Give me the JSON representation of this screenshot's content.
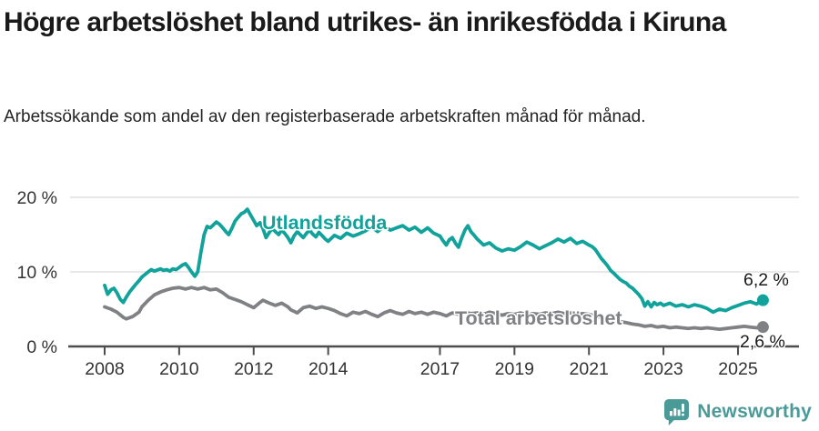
{
  "header": {
    "title": "Högre arbetslöshet bland utrikes- än inrikesfödda i Kiruna",
    "subtitle": "Arbetssökande som andel av den registerbaserade arbetskraften månad för månad."
  },
  "footer": {
    "brand": "Newsworthy",
    "logo_icon": "speech-bubble-bar-chart-icon"
  },
  "colors": {
    "foreign_born": "#11a39b",
    "total": "#808184",
    "grid": "#e1e1e1",
    "axis": "#4d4d4d",
    "tick_text": "#333333",
    "value_text": "#1a1a1a",
    "brand": "#4a9b98"
  },
  "chart_data": {
    "type": "line",
    "ylabel": "",
    "xlabel": "",
    "ylim": [
      0,
      21.5
    ],
    "grid": "horizontal",
    "legend_position": "inline-labels",
    "yticks": [
      {
        "label": "0 %",
        "value": 0
      },
      {
        "label": "10 %",
        "value": 10
      },
      {
        "label": "20 %",
        "value": 20
      }
    ],
    "xticks": [
      {
        "label": "2008",
        "value": 2008
      },
      {
        "label": "2010",
        "value": 2010
      },
      {
        "label": "2012",
        "value": 2012
      },
      {
        "label": "2014",
        "value": 2014
      },
      {
        "label": "2017",
        "value": 2017
      },
      {
        "label": "2019",
        "value": 2019
      },
      {
        "label": "2021",
        "value": 2021
      },
      {
        "label": "2023",
        "value": 2023
      },
      {
        "label": "2025",
        "value": 2025
      }
    ],
    "series": [
      {
        "name": "Utlandsfödda",
        "color_key": "foreign_born",
        "end_label": "6,2 %",
        "end_value": 6.2,
        "points": [
          [
            2008.0,
            8.2
          ],
          [
            2008.08,
            7.0
          ],
          [
            2008.17,
            7.6
          ],
          [
            2008.25,
            7.8
          ],
          [
            2008.33,
            7.2
          ],
          [
            2008.42,
            6.3
          ],
          [
            2008.5,
            5.9
          ],
          [
            2008.58,
            6.6
          ],
          [
            2008.67,
            7.3
          ],
          [
            2008.75,
            7.8
          ],
          [
            2008.83,
            8.3
          ],
          [
            2008.92,
            8.8
          ],
          [
            2009.0,
            9.3
          ],
          [
            2009.17,
            10.0
          ],
          [
            2009.25,
            10.3
          ],
          [
            2009.33,
            10.1
          ],
          [
            2009.5,
            10.4
          ],
          [
            2009.58,
            10.2
          ],
          [
            2009.67,
            10.3
          ],
          [
            2009.75,
            10.1
          ],
          [
            2009.83,
            10.4
          ],
          [
            2009.92,
            10.3
          ],
          [
            2010.0,
            10.6
          ],
          [
            2010.08,
            10.9
          ],
          [
            2010.17,
            11.1
          ],
          [
            2010.25,
            10.6
          ],
          [
            2010.33,
            10.0
          ],
          [
            2010.42,
            9.4
          ],
          [
            2010.5,
            10.0
          ],
          [
            2010.58,
            12.5
          ],
          [
            2010.67,
            15.0
          ],
          [
            2010.75,
            16.1
          ],
          [
            2010.83,
            15.9
          ],
          [
            2010.92,
            16.3
          ],
          [
            2011.0,
            16.7
          ],
          [
            2011.08,
            16.4
          ],
          [
            2011.17,
            15.9
          ],
          [
            2011.25,
            15.4
          ],
          [
            2011.33,
            15.0
          ],
          [
            2011.42,
            15.9
          ],
          [
            2011.5,
            16.8
          ],
          [
            2011.58,
            17.3
          ],
          [
            2011.67,
            17.8
          ],
          [
            2011.75,
            18.0
          ],
          [
            2011.83,
            18.4
          ],
          [
            2011.92,
            17.6
          ],
          [
            2012.0,
            16.9
          ],
          [
            2012.08,
            16.2
          ],
          [
            2012.17,
            16.6
          ],
          [
            2012.25,
            15.8
          ],
          [
            2012.33,
            14.6
          ],
          [
            2012.42,
            15.3
          ],
          [
            2012.5,
            15.8
          ],
          [
            2012.58,
            15.4
          ],
          [
            2012.67,
            15.0
          ],
          [
            2012.75,
            15.6
          ],
          [
            2012.83,
            15.2
          ],
          [
            2012.92,
            14.6
          ],
          [
            2013.0,
            13.9
          ],
          [
            2013.08,
            14.8
          ],
          [
            2013.17,
            15.4
          ],
          [
            2013.25,
            15.0
          ],
          [
            2013.33,
            14.6
          ],
          [
            2013.42,
            15.2
          ],
          [
            2013.5,
            15.6
          ],
          [
            2013.58,
            15.1
          ],
          [
            2013.67,
            14.7
          ],
          [
            2013.75,
            15.3
          ],
          [
            2013.83,
            14.9
          ],
          [
            2013.92,
            14.4
          ],
          [
            2014.0,
            14.1
          ],
          [
            2014.17,
            14.9
          ],
          [
            2014.33,
            14.5
          ],
          [
            2014.5,
            15.2
          ],
          [
            2014.67,
            14.8
          ],
          [
            2014.83,
            15.1
          ],
          [
            2015.0,
            15.5
          ],
          [
            2015.17,
            16.0
          ],
          [
            2015.33,
            15.4
          ],
          [
            2015.5,
            16.1
          ],
          [
            2015.67,
            15.6
          ],
          [
            2015.83,
            15.9
          ],
          [
            2016.0,
            16.2
          ],
          [
            2016.17,
            15.6
          ],
          [
            2016.33,
            16.0
          ],
          [
            2016.5,
            15.3
          ],
          [
            2016.67,
            15.9
          ],
          [
            2016.83,
            15.2
          ],
          [
            2017.0,
            14.8
          ],
          [
            2017.08,
            14.2
          ],
          [
            2017.17,
            13.6
          ],
          [
            2017.25,
            14.3
          ],
          [
            2017.33,
            14.6
          ],
          [
            2017.42,
            13.8
          ],
          [
            2017.5,
            13.3
          ],
          [
            2017.58,
            14.5
          ],
          [
            2017.67,
            15.6
          ],
          [
            2017.75,
            16.2
          ],
          [
            2017.83,
            15.4
          ],
          [
            2017.92,
            14.9
          ],
          [
            2018.0,
            14.4
          ],
          [
            2018.17,
            13.6
          ],
          [
            2018.33,
            13.9
          ],
          [
            2018.5,
            13.2
          ],
          [
            2018.67,
            12.8
          ],
          [
            2018.83,
            13.1
          ],
          [
            2019.0,
            12.9
          ],
          [
            2019.17,
            13.4
          ],
          [
            2019.33,
            14.0
          ],
          [
            2019.5,
            13.6
          ],
          [
            2019.67,
            13.1
          ],
          [
            2019.83,
            13.5
          ],
          [
            2020.0,
            13.9
          ],
          [
            2020.17,
            14.4
          ],
          [
            2020.33,
            14.0
          ],
          [
            2020.5,
            14.5
          ],
          [
            2020.67,
            13.8
          ],
          [
            2020.83,
            14.1
          ],
          [
            2021.0,
            13.6
          ],
          [
            2021.08,
            13.4
          ],
          [
            2021.17,
            13.0
          ],
          [
            2021.25,
            12.4
          ],
          [
            2021.33,
            11.8
          ],
          [
            2021.42,
            11.3
          ],
          [
            2021.5,
            10.8
          ],
          [
            2021.58,
            10.2
          ],
          [
            2021.67,
            9.8
          ],
          [
            2021.75,
            9.4
          ],
          [
            2021.83,
            9.0
          ],
          [
            2021.92,
            8.7
          ],
          [
            2022.0,
            8.5
          ],
          [
            2022.08,
            8.1
          ],
          [
            2022.17,
            7.8
          ],
          [
            2022.25,
            7.4
          ],
          [
            2022.33,
            7.0
          ],
          [
            2022.42,
            6.4
          ],
          [
            2022.5,
            5.4
          ],
          [
            2022.58,
            6.0
          ],
          [
            2022.67,
            5.3
          ],
          [
            2022.75,
            5.9
          ],
          [
            2022.83,
            5.6
          ],
          [
            2022.92,
            5.8
          ],
          [
            2023.0,
            5.5
          ],
          [
            2023.17,
            5.8
          ],
          [
            2023.33,
            5.4
          ],
          [
            2023.5,
            5.6
          ],
          [
            2023.67,
            5.3
          ],
          [
            2023.83,
            5.6
          ],
          [
            2024.0,
            5.4
          ],
          [
            2024.17,
            5.1
          ],
          [
            2024.33,
            4.6
          ],
          [
            2024.5,
            5.0
          ],
          [
            2024.67,
            4.8
          ],
          [
            2024.83,
            5.2
          ],
          [
            2025.0,
            5.5
          ],
          [
            2025.17,
            5.8
          ],
          [
            2025.33,
            6.0
          ],
          [
            2025.5,
            5.7
          ],
          [
            2025.67,
            6.2
          ]
        ]
      },
      {
        "name": "Total arbetslöshet",
        "color_key": "total",
        "end_label": "2,6 %",
        "end_value": 2.6,
        "points": [
          [
            2008.0,
            5.3
          ],
          [
            2008.17,
            5.0
          ],
          [
            2008.33,
            4.6
          ],
          [
            2008.5,
            3.9
          ],
          [
            2008.58,
            3.7
          ],
          [
            2008.75,
            4.0
          ],
          [
            2008.92,
            4.6
          ],
          [
            2009.0,
            5.3
          ],
          [
            2009.17,
            6.2
          ],
          [
            2009.33,
            6.9
          ],
          [
            2009.5,
            7.3
          ],
          [
            2009.67,
            7.6
          ],
          [
            2009.83,
            7.8
          ],
          [
            2010.0,
            7.9
          ],
          [
            2010.17,
            7.7
          ],
          [
            2010.33,
            7.9
          ],
          [
            2010.5,
            7.7
          ],
          [
            2010.67,
            7.9
          ],
          [
            2010.83,
            7.6
          ],
          [
            2011.0,
            7.7
          ],
          [
            2011.17,
            7.2
          ],
          [
            2011.33,
            6.6
          ],
          [
            2011.5,
            6.3
          ],
          [
            2011.67,
            6.0
          ],
          [
            2011.83,
            5.6
          ],
          [
            2012.0,
            5.2
          ],
          [
            2012.17,
            5.9
          ],
          [
            2012.25,
            6.2
          ],
          [
            2012.42,
            5.8
          ],
          [
            2012.58,
            5.5
          ],
          [
            2012.75,
            5.8
          ],
          [
            2012.92,
            5.3
          ],
          [
            2013.0,
            4.9
          ],
          [
            2013.17,
            4.5
          ],
          [
            2013.33,
            5.2
          ],
          [
            2013.5,
            5.4
          ],
          [
            2013.67,
            5.1
          ],
          [
            2013.83,
            5.3
          ],
          [
            2014.0,
            5.1
          ],
          [
            2014.17,
            4.8
          ],
          [
            2014.33,
            4.4
          ],
          [
            2014.5,
            4.1
          ],
          [
            2014.67,
            4.6
          ],
          [
            2014.83,
            4.4
          ],
          [
            2015.0,
            4.7
          ],
          [
            2015.17,
            4.3
          ],
          [
            2015.33,
            4.0
          ],
          [
            2015.5,
            4.5
          ],
          [
            2015.67,
            4.8
          ],
          [
            2015.83,
            4.5
          ],
          [
            2016.0,
            4.3
          ],
          [
            2016.17,
            4.7
          ],
          [
            2016.33,
            4.4
          ],
          [
            2016.5,
            4.6
          ],
          [
            2016.67,
            4.3
          ],
          [
            2016.83,
            4.6
          ],
          [
            2017.0,
            4.4
          ],
          [
            2017.17,
            4.1
          ],
          [
            2017.33,
            4.5
          ],
          [
            2017.5,
            4.3
          ],
          [
            2017.67,
            4.6
          ],
          [
            2017.83,
            4.4
          ],
          [
            2018.0,
            4.5
          ],
          [
            2018.17,
            4.3
          ],
          [
            2018.33,
            4.6
          ],
          [
            2018.5,
            4.4
          ],
          [
            2018.67,
            4.2
          ],
          [
            2018.83,
            4.4
          ],
          [
            2019.0,
            4.3
          ],
          [
            2019.17,
            4.5
          ],
          [
            2019.33,
            4.2
          ],
          [
            2019.5,
            4.4
          ],
          [
            2019.67,
            4.3
          ],
          [
            2019.83,
            4.5
          ],
          [
            2020.0,
            4.4
          ],
          [
            2020.17,
            4.6
          ],
          [
            2020.33,
            4.4
          ],
          [
            2020.5,
            4.5
          ],
          [
            2020.67,
            4.3
          ],
          [
            2020.83,
            4.4
          ],
          [
            2021.0,
            4.3
          ],
          [
            2021.17,
            4.1
          ],
          [
            2021.33,
            3.9
          ],
          [
            2021.5,
            3.7
          ],
          [
            2021.67,
            3.5
          ],
          [
            2021.83,
            3.3
          ],
          [
            2022.0,
            3.2
          ],
          [
            2022.17,
            3.0
          ],
          [
            2022.33,
            2.9
          ],
          [
            2022.5,
            2.7
          ],
          [
            2022.67,
            2.8
          ],
          [
            2022.83,
            2.6
          ],
          [
            2023.0,
            2.7
          ],
          [
            2023.17,
            2.5
          ],
          [
            2023.33,
            2.6
          ],
          [
            2023.5,
            2.5
          ],
          [
            2023.67,
            2.4
          ],
          [
            2023.83,
            2.5
          ],
          [
            2024.0,
            2.4
          ],
          [
            2024.17,
            2.5
          ],
          [
            2024.33,
            2.4
          ],
          [
            2024.5,
            2.3
          ],
          [
            2024.67,
            2.4
          ],
          [
            2024.83,
            2.5
          ],
          [
            2025.0,
            2.6
          ],
          [
            2025.17,
            2.7
          ],
          [
            2025.33,
            2.6
          ],
          [
            2025.5,
            2.5
          ],
          [
            2025.67,
            2.6
          ]
        ]
      }
    ]
  }
}
